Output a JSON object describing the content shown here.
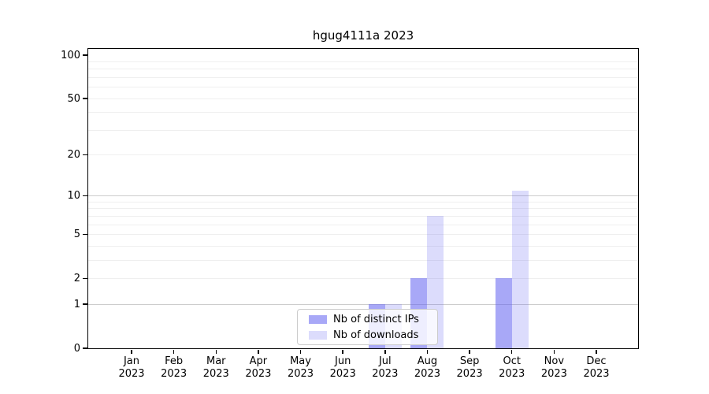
{
  "chart_data": {
    "type": "bar",
    "title": "hgug4111a 2023",
    "categories": [
      "Jan",
      "Feb",
      "Mar",
      "Apr",
      "May",
      "Jun",
      "Jul",
      "Aug",
      "Sep",
      "Oct",
      "Nov",
      "Dec"
    ],
    "x_sublabel": "2023",
    "series": [
      {
        "name": "Nb of distinct IPs",
        "color": "rgba(96,96,240,0.55)",
        "values": [
          0,
          0,
          0,
          0,
          0,
          0,
          1,
          2,
          0,
          2,
          0,
          0
        ]
      },
      {
        "name": "Nb of downloads",
        "color": "rgba(96,96,240,0.22)",
        "values": [
          0,
          0,
          0,
          0,
          0,
          0,
          1,
          7,
          0,
          11,
          0,
          0
        ]
      }
    ],
    "yticks": [
      0,
      1,
      2,
      5,
      10,
      20,
      50,
      100
    ],
    "yscale": "log1p",
    "ylim": [
      0,
      110
    ],
    "grid": {
      "on": true,
      "minor_values": [
        2,
        3,
        4,
        6,
        7,
        8,
        9,
        20,
        30,
        40,
        60,
        70,
        80,
        90
      ],
      "major_values": [
        1,
        5,
        10,
        20,
        50,
        100
      ]
    },
    "legend_position": "lower-center",
    "xlabel": "",
    "ylabel": ""
  },
  "colors": {
    "grid_minor": "#efefef",
    "grid_major": "#cccccc",
    "axis_box": "#000000",
    "legend_border": "#cccccc",
    "text": "#000000"
  }
}
